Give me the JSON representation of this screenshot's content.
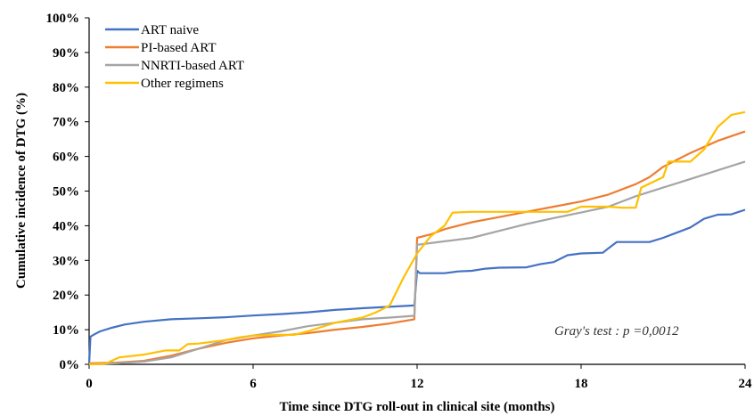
{
  "chart_data": {
    "type": "line",
    "title": "",
    "xlabel": "Time since DTG roll-out in clinical site (months)",
    "ylabel": "Cumulative incidence of DTG (%)",
    "xlim": [
      0,
      24
    ],
    "ylim": [
      0,
      100
    ],
    "x_ticks": [
      "0",
      "6",
      "12",
      "18",
      "24"
    ],
    "y_ticks": [
      "0%",
      "10%",
      "20%",
      "30%",
      "40%",
      "50%",
      "60%",
      "70%",
      "80%",
      "90%",
      "100%"
    ],
    "grid": false,
    "legend_position": "top-left",
    "annotation": "Gray's test : p =0,0012",
    "series": [
      {
        "name": "ART naive",
        "color": "#4472C4",
        "points": [
          [
            0,
            0
          ],
          [
            0.05,
            8
          ],
          [
            0.2,
            8.7
          ],
          [
            0.4,
            9.5
          ],
          [
            0.8,
            10.5
          ],
          [
            1.3,
            11.5
          ],
          [
            2,
            12.3
          ],
          [
            3,
            13
          ],
          [
            4,
            13.3
          ],
          [
            5,
            13.6
          ],
          [
            6,
            14.1
          ],
          [
            7,
            14.5
          ],
          [
            8,
            15
          ],
          [
            9,
            15.7
          ],
          [
            10,
            16.2
          ],
          [
            11,
            16.6
          ],
          [
            11.9,
            17
          ],
          [
            12,
            27
          ],
          [
            12.1,
            26.3
          ],
          [
            13,
            26.3
          ],
          [
            13.5,
            26.8
          ],
          [
            14,
            27
          ],
          [
            14.5,
            27.6
          ],
          [
            15,
            27.9
          ],
          [
            16,
            28
          ],
          [
            16.5,
            28.9
          ],
          [
            17,
            29.5
          ],
          [
            17.5,
            31.5
          ],
          [
            18,
            32
          ],
          [
            18.8,
            32.2
          ],
          [
            19,
            33.5
          ],
          [
            19.3,
            35.3
          ],
          [
            20,
            35.3
          ],
          [
            20.5,
            35.3
          ],
          [
            21,
            36.5
          ],
          [
            21.5,
            38
          ],
          [
            22,
            39.5
          ],
          [
            22.5,
            42
          ],
          [
            23,
            43.2
          ],
          [
            23.5,
            43.3
          ],
          [
            24,
            44.6
          ]
        ]
      },
      {
        "name": "PI-based ART",
        "color": "#ED7D31",
        "points": [
          [
            0,
            0.3
          ],
          [
            1,
            0.5
          ],
          [
            2,
            1
          ],
          [
            3,
            2.5
          ],
          [
            4,
            4.5
          ],
          [
            5,
            6.2
          ],
          [
            6,
            7.5
          ],
          [
            7,
            8.3
          ],
          [
            8,
            9
          ],
          [
            9,
            10
          ],
          [
            10,
            10.8
          ],
          [
            11,
            11.8
          ],
          [
            11.9,
            13
          ],
          [
            12,
            36.5
          ],
          [
            12.5,
            37.5
          ],
          [
            13,
            39
          ],
          [
            14,
            41
          ],
          [
            15,
            42.5
          ],
          [
            16,
            44
          ],
          [
            17,
            45.5
          ],
          [
            18,
            47
          ],
          [
            19,
            49
          ],
          [
            20,
            52
          ],
          [
            20.5,
            54
          ],
          [
            21,
            57
          ],
          [
            22,
            61
          ],
          [
            23,
            64.5
          ],
          [
            24,
            67.2
          ]
        ]
      },
      {
        "name": "NNRTI-based ART",
        "color": "#A5A5A5",
        "points": [
          [
            0,
            0
          ],
          [
            1,
            0.3
          ],
          [
            2,
            0.8
          ],
          [
            3,
            2
          ],
          [
            4,
            4.5
          ],
          [
            5,
            7
          ],
          [
            6,
            8.3
          ],
          [
            7,
            9.5
          ],
          [
            8,
            11
          ],
          [
            9,
            12
          ],
          [
            10,
            13
          ],
          [
            11,
            13.5
          ],
          [
            11.9,
            14
          ],
          [
            12,
            34.5
          ],
          [
            12.5,
            35
          ],
          [
            13,
            35.5
          ],
          [
            14,
            36.5
          ],
          [
            15,
            38.5
          ],
          [
            16,
            40.5
          ],
          [
            17,
            42.2
          ],
          [
            18,
            43.8
          ],
          [
            19,
            45.5
          ],
          [
            20,
            48.5
          ],
          [
            21,
            51
          ],
          [
            22,
            53.5
          ],
          [
            23,
            56
          ],
          [
            24,
            58.5
          ]
        ]
      },
      {
        "name": "Other regimens",
        "color": "#FFC000",
        "points": [
          [
            0,
            0
          ],
          [
            0.6,
            0.2
          ],
          [
            1.1,
            2
          ],
          [
            2,
            2.8
          ],
          [
            2.8,
            4
          ],
          [
            3.3,
            4
          ],
          [
            3.6,
            5.8
          ],
          [
            4,
            6
          ],
          [
            5,
            7
          ],
          [
            5.5,
            7.8
          ],
          [
            6,
            8.3
          ],
          [
            7,
            8.5
          ],
          [
            7.5,
            8.5
          ],
          [
            8,
            9.5
          ],
          [
            9,
            12
          ],
          [
            10,
            13.5
          ],
          [
            10.5,
            15
          ],
          [
            11,
            17
          ],
          [
            11.5,
            25
          ],
          [
            12,
            32
          ],
          [
            12.5,
            37
          ],
          [
            13,
            40
          ],
          [
            13.3,
            43.8
          ],
          [
            14,
            44
          ],
          [
            15,
            44
          ],
          [
            16,
            44
          ],
          [
            17.5,
            44
          ],
          [
            18,
            45.5
          ],
          [
            19,
            45.5
          ],
          [
            19.5,
            45.2
          ],
          [
            20,
            45.2
          ],
          [
            20.2,
            51
          ],
          [
            21,
            54
          ],
          [
            21.2,
            58.5
          ],
          [
            22,
            58.5
          ],
          [
            22.5,
            62
          ],
          [
            23,
            68.5
          ],
          [
            23.5,
            72
          ],
          [
            24,
            72.8
          ]
        ]
      }
    ]
  }
}
